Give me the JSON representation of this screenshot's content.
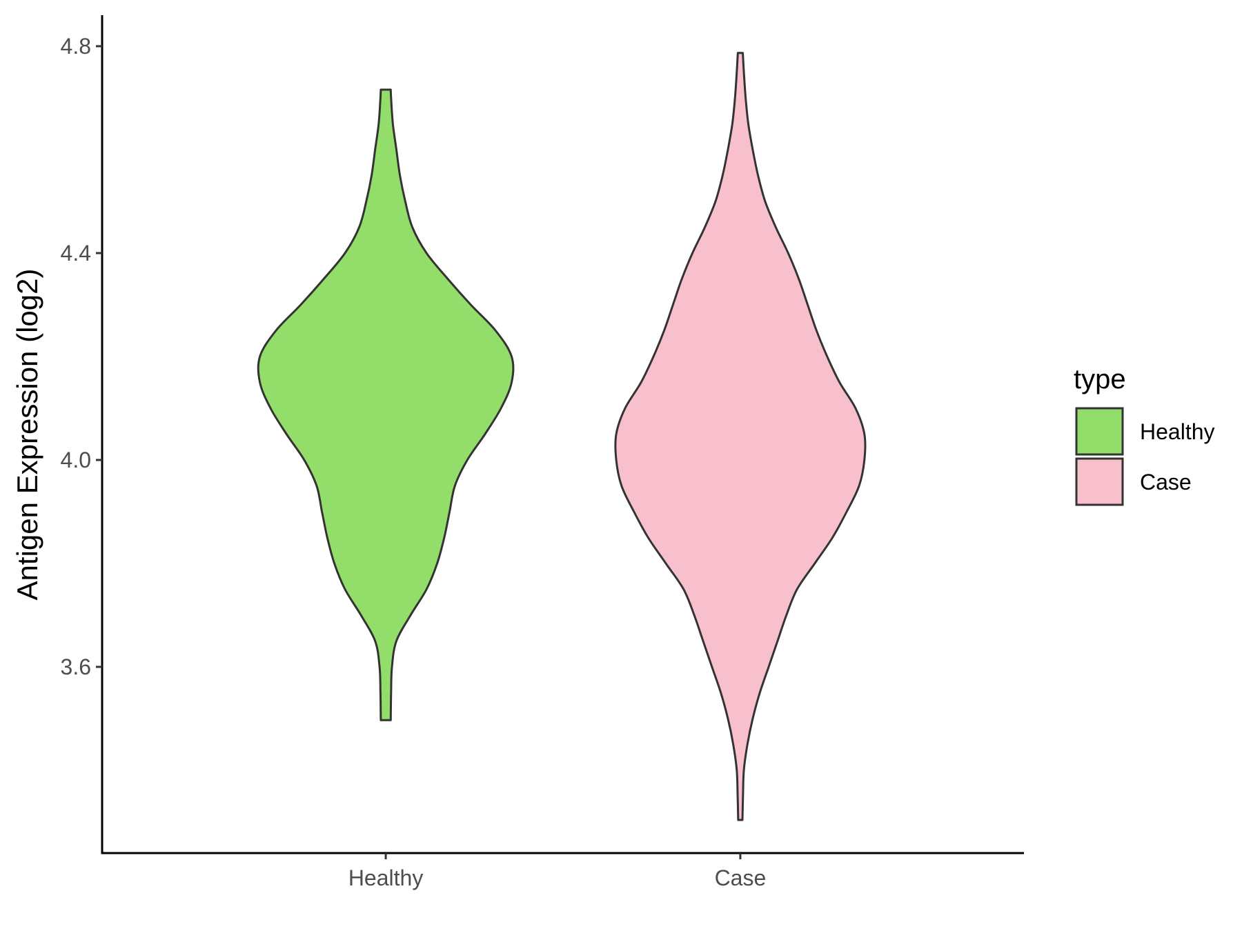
{
  "chart_data": {
    "type": "violin",
    "ylabel": "Antigen Expression (log2)",
    "xlabel": "",
    "ylim": [
      3.24,
      4.86
    ],
    "yticks": [
      3.6,
      4.0,
      4.4,
      4.8
    ],
    "ytick_labels": [
      "3.6",
      "4.0",
      "4.4",
      "4.8"
    ],
    "categories": [
      "Healthy",
      "Case"
    ],
    "legend": {
      "title": "type",
      "position": "right",
      "entries": [
        "Healthy",
        "Case"
      ]
    },
    "series": [
      {
        "name": "Healthy",
        "color": "#93dd6a",
        "min": 3.497,
        "max": 4.716,
        "profile": [
          [
            3.497,
            0.028
          ],
          [
            3.55,
            0.03
          ],
          [
            3.6,
            0.035
          ],
          [
            3.65,
            0.06
          ],
          [
            3.7,
            0.14
          ],
          [
            3.75,
            0.23
          ],
          [
            3.8,
            0.29
          ],
          [
            3.85,
            0.33
          ],
          [
            3.9,
            0.36
          ],
          [
            3.95,
            0.39
          ],
          [
            4.0,
            0.46
          ],
          [
            4.05,
            0.56
          ],
          [
            4.1,
            0.65
          ],
          [
            4.15,
            0.71
          ],
          [
            4.2,
            0.71
          ],
          [
            4.25,
            0.62
          ],
          [
            4.3,
            0.48
          ],
          [
            4.35,
            0.35
          ],
          [
            4.4,
            0.23
          ],
          [
            4.45,
            0.15
          ],
          [
            4.5,
            0.11
          ],
          [
            4.55,
            0.08
          ],
          [
            4.6,
            0.06
          ],
          [
            4.65,
            0.04
          ],
          [
            4.7,
            0.03
          ],
          [
            4.716,
            0.028
          ]
        ]
      },
      {
        "name": "Case",
        "color": "#f7c0cc",
        "min": 3.304,
        "max": 4.787,
        "profile": [
          [
            3.304,
            0.012
          ],
          [
            3.35,
            0.015
          ],
          [
            3.4,
            0.02
          ],
          [
            3.45,
            0.04
          ],
          [
            3.5,
            0.07
          ],
          [
            3.55,
            0.11
          ],
          [
            3.6,
            0.16
          ],
          [
            3.65,
            0.21
          ],
          [
            3.7,
            0.26
          ],
          [
            3.75,
            0.32
          ],
          [
            3.8,
            0.42
          ],
          [
            3.85,
            0.52
          ],
          [
            3.9,
            0.6
          ],
          [
            3.95,
            0.67
          ],
          [
            4.0,
            0.7
          ],
          [
            4.05,
            0.7
          ],
          [
            4.1,
            0.65
          ],
          [
            4.15,
            0.56
          ],
          [
            4.2,
            0.49
          ],
          [
            4.25,
            0.43
          ],
          [
            4.3,
            0.38
          ],
          [
            4.35,
            0.33
          ],
          [
            4.4,
            0.27
          ],
          [
            4.45,
            0.2
          ],
          [
            4.5,
            0.14
          ],
          [
            4.55,
            0.1
          ],
          [
            4.6,
            0.07
          ],
          [
            4.65,
            0.045
          ],
          [
            4.7,
            0.03
          ],
          [
            4.75,
            0.02
          ],
          [
            4.787,
            0.014
          ]
        ]
      }
    ],
    "grid": false
  }
}
